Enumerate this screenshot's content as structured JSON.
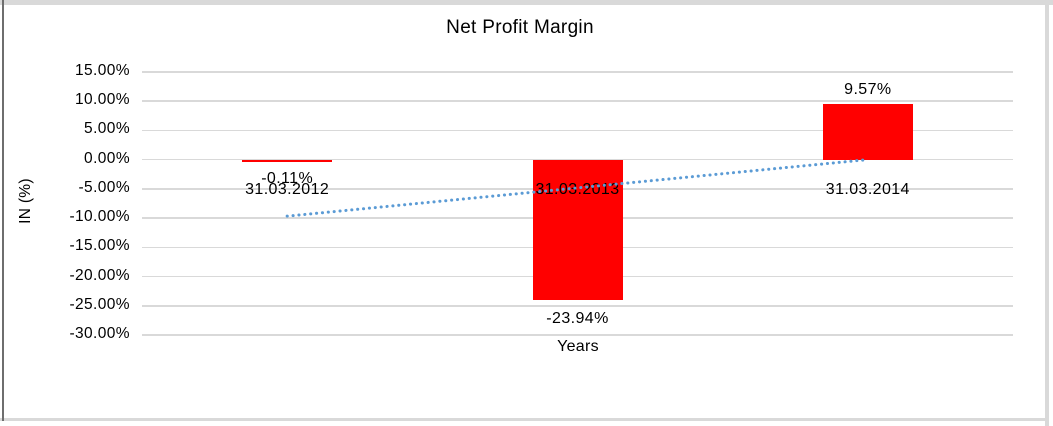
{
  "window": {
    "background": "#ffffff",
    "border_color": "#d9d9d9",
    "left_edge_color": "#6e6e6e"
  },
  "chart_data": {
    "type": "bar",
    "title": "Net Profit Margin",
    "xlabel": "Years",
    "ylabel": "IN (%)",
    "categories": [
      "31.03.2012",
      "31.03.2013",
      "31.03.2014"
    ],
    "values": [
      -0.11,
      -23.94,
      9.57
    ],
    "data_labels": [
      "-0.11%",
      "-23.94%",
      "9.57%"
    ],
    "ytick_labels": [
      "15.00%",
      "10.00%",
      "5.00%",
      "0.00%",
      "-5.00%",
      "-10.00%",
      "-15.00%",
      "-20.00%",
      "-25.00%",
      "-30.00%"
    ],
    "yticks": [
      15,
      10,
      5,
      0,
      -5,
      -10,
      -15,
      -20,
      -25,
      -30
    ],
    "ylim": [
      -30,
      15
    ],
    "ytick_step": 5,
    "grid": true,
    "legend": "none",
    "bar_color": "#ff0000",
    "gridline_color": "#d9d9d9",
    "text_color": "#000000",
    "trendline": {
      "type": "linear",
      "style": "dotted",
      "color": "#5b9bd5"
    }
  }
}
